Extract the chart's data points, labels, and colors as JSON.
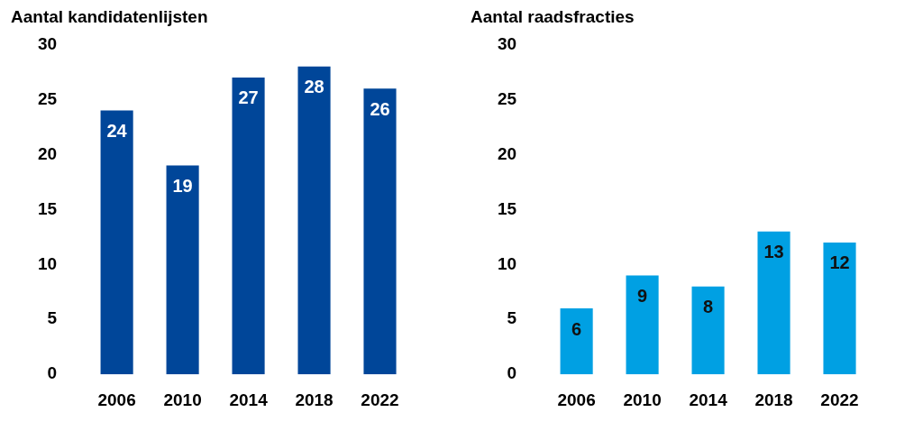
{
  "chart_data": [
    {
      "type": "bar",
      "title": "Aantal kandidatenlijsten",
      "categories": [
        "2006",
        "2010",
        "2014",
        "2018",
        "2022"
      ],
      "values": [
        24,
        19,
        27,
        28,
        26
      ],
      "color": "#004699",
      "ylim": [
        0,
        30
      ],
      "yticks": [
        0,
        5,
        10,
        15,
        20,
        25,
        30
      ],
      "grid": false,
      "legend": false,
      "data_labels": true
    },
    {
      "type": "bar",
      "title": "Aantal raadsfracties",
      "categories": [
        "2006",
        "2010",
        "2014",
        "2018",
        "2022"
      ],
      "values": [
        6,
        9,
        8,
        13,
        12
      ],
      "color": "#00a0e3",
      "ylim": [
        0,
        30
      ],
      "yticks": [
        0,
        5,
        10,
        15,
        20,
        25,
        30
      ],
      "grid": false,
      "legend": false,
      "data_labels": true
    }
  ]
}
